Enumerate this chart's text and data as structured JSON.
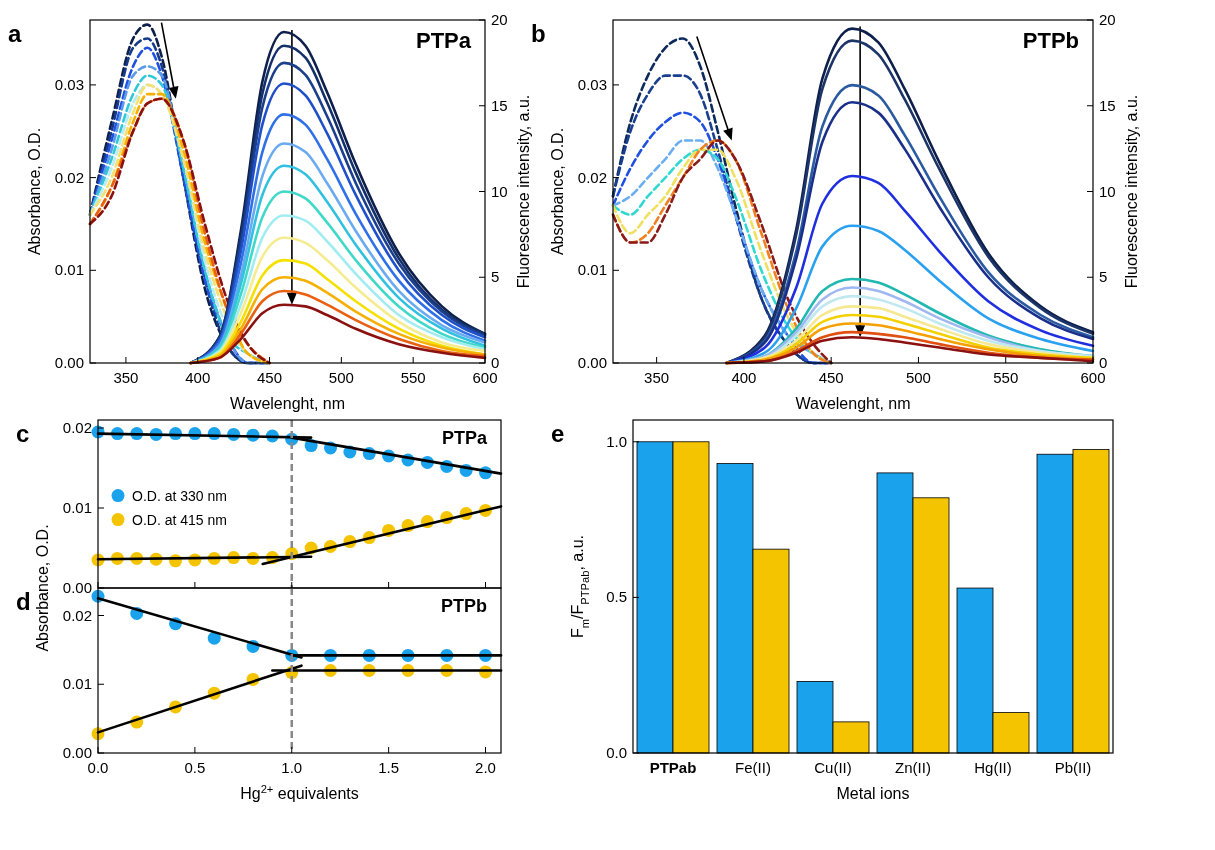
{
  "chart_data": [
    {
      "type": "line",
      "title": "PTPa",
      "annotations": [
        "a"
      ],
      "xlabel": "Wavelenght, nm",
      "ylabel": "Absorbance, O.D.",
      "y2label": "Fluorescence intensity, a.u.",
      "xlim": [
        325,
        600
      ],
      "xticks": [
        350,
        400,
        450,
        500,
        550,
        600
      ],
      "ylim": [
        0,
        0.037
      ],
      "yticks": [
        {
          "value": 0,
          "label": "0.00"
        },
        {
          "value": 0.01,
          "label": "0.01"
        },
        {
          "value": 0.02,
          "label": "0.02"
        },
        {
          "value": 0.03,
          "label": "0.03"
        }
      ],
      "y2lim": [
        0,
        20
      ],
      "y2ticks": [
        0,
        5,
        10,
        15,
        20
      ],
      "legend": false,
      "series": [
        {
          "color": "#0d1f4a",
          "line_style": "dashed",
          "x": [
            325,
            340,
            355,
            365,
            375,
            390,
            405,
            420,
            435,
            450
          ],
          "values": [
            0.016,
            0.026,
            0.035,
            0.0365,
            0.033,
            0.02,
            0.008,
            0.002,
            0,
            0
          ]
        },
        {
          "color": "#163a8a",
          "line_style": "dashed",
          "x": [
            325,
            340,
            355,
            365,
            375,
            390,
            405,
            420,
            435,
            450
          ],
          "values": [
            0.016,
            0.025,
            0.034,
            0.035,
            0.032,
            0.02,
            0.009,
            0.002,
            0,
            0
          ]
        },
        {
          "color": "#2050e0",
          "line_style": "dashed",
          "x": [
            325,
            340,
            355,
            365,
            375,
            390,
            405,
            420,
            435,
            450
          ],
          "values": [
            0.016,
            0.024,
            0.032,
            0.034,
            0.031,
            0.02,
            0.009,
            0.003,
            0,
            0
          ]
        },
        {
          "color": "#5a9ae8",
          "line_style": "dashed",
          "x": [
            325,
            340,
            355,
            365,
            375,
            390,
            405,
            420,
            435,
            450
          ],
          "values": [
            0.016,
            0.023,
            0.031,
            0.032,
            0.031,
            0.021,
            0.01,
            0.003,
            0,
            0
          ]
        },
        {
          "color": "#30c8d8",
          "line_style": "dashed",
          "x": [
            325,
            340,
            355,
            365,
            375,
            390,
            405,
            420,
            435,
            450
          ],
          "values": [
            0.016,
            0.022,
            0.029,
            0.031,
            0.03,
            0.021,
            0.01,
            0.003,
            0.001,
            0
          ]
        },
        {
          "color": "#b8ecf0",
          "line_style": "dashed",
          "x": [
            325,
            340,
            355,
            365,
            375,
            390,
            405,
            420,
            435,
            450
          ],
          "values": [
            0.016,
            0.021,
            0.028,
            0.03,
            0.029,
            0.022,
            0.011,
            0.004,
            0.001,
            0
          ]
        },
        {
          "color": "#f5e070",
          "line_style": "dashed",
          "x": [
            325,
            340,
            355,
            365,
            375,
            390,
            405,
            420,
            435,
            450
          ],
          "values": [
            0.016,
            0.02,
            0.027,
            0.03,
            0.029,
            0.022,
            0.012,
            0.005,
            0.001,
            0
          ]
        },
        {
          "color": "#f5b000",
          "line_style": "dashed",
          "x": [
            325,
            340,
            355,
            365,
            375,
            390,
            405,
            420,
            435,
            450
          ],
          "values": [
            0.015,
            0.019,
            0.026,
            0.029,
            0.029,
            0.023,
            0.013,
            0.006,
            0.001,
            0
          ]
        },
        {
          "color": "#e86010",
          "line_style": "dashed",
          "x": [
            325,
            340,
            355,
            365,
            375,
            390,
            405,
            420,
            435,
            450
          ],
          "values": [
            0.015,
            0.019,
            0.025,
            0.028,
            0.0285,
            0.024,
            0.014,
            0.006,
            0.002,
            0
          ]
        },
        {
          "color": "#8b1010",
          "line_style": "dashed",
          "x": [
            325,
            340,
            355,
            365,
            375,
            390,
            405,
            420,
            435,
            450
          ],
          "values": [
            0.015,
            0.018,
            0.025,
            0.028,
            0.0285,
            0.024,
            0.015,
            0.007,
            0.002,
            0
          ]
        },
        {
          "color": "#0d1f4a",
          "axis": "y2",
          "line_style": "solid",
          "x": [
            395,
            415,
            430,
            445,
            460,
            475,
            490,
            510,
            540,
            570,
            600
          ],
          "values": [
            0,
            1.5,
            7.7,
            16.4,
            19.3,
            18.5,
            15.8,
            11.6,
            6.4,
            3.3,
            1.7
          ]
        },
        {
          "color": "#14306a",
          "axis": "y2",
          "line_style": "solid",
          "x": [
            395,
            415,
            430,
            445,
            460,
            475,
            490,
            510,
            540,
            570,
            600
          ],
          "values": [
            0,
            1.5,
            7.4,
            15.7,
            18.5,
            17.8,
            15.2,
            11.1,
            6.1,
            3.1,
            1.7
          ]
        },
        {
          "color": "#1c3f8c",
          "axis": "y2",
          "line_style": "solid",
          "x": [
            395,
            415,
            430,
            445,
            460,
            475,
            490,
            510,
            540,
            570,
            600
          ],
          "values": [
            0,
            1.4,
            7,
            14.9,
            17.5,
            16.8,
            14.4,
            10.5,
            5.8,
            3,
            1.6
          ]
        },
        {
          "color": "#2050c8",
          "axis": "y2",
          "line_style": "solid",
          "x": [
            395,
            415,
            430,
            445,
            460,
            475,
            490,
            510,
            540,
            570,
            600
          ],
          "values": [
            0,
            1.3,
            6.5,
            13.9,
            16.3,
            15.6,
            13.4,
            9.8,
            5.4,
            2.8,
            1.5
          ]
        },
        {
          "color": "#2f70e8",
          "axis": "y2",
          "line_style": "solid",
          "x": [
            395,
            415,
            430,
            445,
            460,
            475,
            490,
            510,
            540,
            570,
            600
          ],
          "values": [
            0,
            1.2,
            5.8,
            12.3,
            14.5,
            13.9,
            11.9,
            8.7,
            4.8,
            2.5,
            1.3
          ]
        },
        {
          "color": "#6aaaf0",
          "axis": "y2",
          "line_style": "solid",
          "x": [
            395,
            415,
            430,
            445,
            460,
            475,
            490,
            510,
            540,
            570,
            600
          ],
          "values": [
            0,
            1,
            5.1,
            10.9,
            12.8,
            12.3,
            10.5,
            7.7,
            4.2,
            2.2,
            1.2
          ]
        },
        {
          "color": "#30c0e0",
          "axis": "y2",
          "line_style": "solid",
          "x": [
            395,
            415,
            430,
            445,
            460,
            475,
            490,
            510,
            540,
            570,
            600
          ],
          "values": [
            0,
            0.9,
            4.6,
            9.8,
            11.5,
            11,
            9.4,
            6.9,
            3.8,
            2,
            1
          ]
        },
        {
          "color": "#40d8c8",
          "axis": "y2",
          "line_style": "solid",
          "x": [
            395,
            415,
            430,
            445,
            460,
            475,
            490,
            510,
            540,
            570,
            600
          ],
          "values": [
            0,
            0.8,
            4,
            8.5,
            10,
            9.6,
            8.2,
            6,
            3.3,
            1.7,
            0.9
          ]
        },
        {
          "color": "#a0ecf0",
          "axis": "y2",
          "line_style": "solid",
          "x": [
            395,
            415,
            430,
            445,
            460,
            475,
            490,
            510,
            540,
            570,
            600
          ],
          "values": [
            0,
            0.7,
            3.4,
            7.3,
            8.6,
            8.3,
            7.1,
            5.2,
            2.8,
            1.5,
            0.8
          ]
        },
        {
          "color": "#f5ec90",
          "axis": "y2",
          "line_style": "solid",
          "x": [
            395,
            415,
            430,
            445,
            460,
            475,
            490,
            510,
            540,
            570,
            600
          ],
          "values": [
            0,
            0.6,
            2.9,
            6.2,
            7.3,
            7,
            6,
            4.4,
            2.4,
            1.2,
            0.7
          ]
        },
        {
          "color": "#f5e000",
          "axis": "y2",
          "line_style": "solid",
          "x": [
            395,
            415,
            430,
            445,
            460,
            475,
            490,
            510,
            540,
            570,
            600
          ],
          "values": [
            0,
            0.5,
            2.4,
            5.1,
            6,
            5.8,
            4.9,
            3.6,
            2,
            1,
            0.5
          ]
        },
        {
          "color": "#f5b000",
          "axis": "y2",
          "line_style": "solid",
          "x": [
            395,
            415,
            430,
            445,
            460,
            475,
            490,
            510,
            540,
            570,
            600
          ],
          "values": [
            0,
            0.4,
            2,
            4.3,
            5,
            4.8,
            4.1,
            3,
            1.7,
            0.9,
            0.5
          ]
        },
        {
          "color": "#e86010",
          "axis": "y2",
          "line_style": "solid",
          "x": [
            395,
            415,
            430,
            445,
            460,
            475,
            490,
            510,
            540,
            570,
            600
          ],
          "values": [
            0,
            0.3,
            1.7,
            3.6,
            4.2,
            4,
            3.4,
            2.5,
            1.4,
            0.7,
            0.4
          ]
        },
        {
          "color": "#8b1010",
          "axis": "y2",
          "line_style": "solid",
          "x": [
            395,
            415,
            430,
            445,
            460,
            475,
            490,
            510,
            540,
            570,
            600
          ],
          "values": [
            0,
            0.3,
            1.4,
            2.9,
            3.4,
            3.3,
            2.8,
            2,
            1.1,
            0.6,
            0.3
          ]
        }
      ]
    },
    {
      "type": "line",
      "title": "PTPb",
      "annotations": [
        "b"
      ],
      "xlabel": "Wavelenght, nm",
      "ylabel": "Absorbance, O.D.",
      "y2label": "Fluorescence intensity, a.u.",
      "xlim": [
        325,
        600
      ],
      "xticks": [
        350,
        400,
        450,
        500,
        550,
        600
      ],
      "ylim": [
        0,
        0.037
      ],
      "yticks": [
        {
          "value": 0,
          "label": "0.00"
        },
        {
          "value": 0.01,
          "label": "0.01"
        },
        {
          "value": 0.02,
          "label": "0.02"
        },
        {
          "value": 0.03,
          "label": "0.03"
        }
      ],
      "y2lim": [
        0,
        20
      ],
      "y2ticks": [
        0,
        5,
        10,
        15,
        20
      ],
      "legend": false,
      "series": [
        {
          "color": "#0d2a5c",
          "line_style": "dashed",
          "x": [
            325,
            335,
            345,
            355,
            365,
            375,
            385,
            395,
            410,
            425,
            440,
            450
          ],
          "values": [
            0.018,
            0.026,
            0.031,
            0.034,
            0.035,
            0.032,
            0.025,
            0.017,
            0.007,
            0.002,
            0,
            0
          ]
        },
        {
          "color": "#1a3f8f",
          "line_style": "dashed",
          "x": [
            325,
            335,
            345,
            355,
            365,
            375,
            385,
            395,
            410,
            425,
            440,
            450
          ],
          "values": [
            0.018,
            0.025,
            0.029,
            0.031,
            0.031,
            0.029,
            0.023,
            0.016,
            0.007,
            0.002,
            0,
            0
          ]
        },
        {
          "color": "#2050e0",
          "line_style": "dashed",
          "x": [
            325,
            335,
            345,
            355,
            365,
            375,
            385,
            395,
            410,
            425,
            440,
            450
          ],
          "values": [
            0.017,
            0.021,
            0.024,
            0.026,
            0.027,
            0.026,
            0.022,
            0.016,
            0.008,
            0.003,
            0,
            0
          ]
        },
        {
          "color": "#6aaef0",
          "line_style": "dashed",
          "x": [
            325,
            335,
            345,
            355,
            365,
            375,
            385,
            395,
            410,
            425,
            440,
            450
          ],
          "values": [
            0.017,
            0.018,
            0.02,
            0.022,
            0.024,
            0.024,
            0.021,
            0.016,
            0.008,
            0.003,
            0.001,
            0
          ]
        },
        {
          "color": "#30d8d0",
          "line_style": "dashed",
          "x": [
            325,
            335,
            345,
            355,
            365,
            375,
            385,
            395,
            410,
            425,
            440,
            450
          ],
          "values": [
            0.017,
            0.016,
            0.018,
            0.02,
            0.022,
            0.023,
            0.022,
            0.018,
            0.01,
            0.004,
            0.001,
            0
          ]
        },
        {
          "color": "#f0e060",
          "line_style": "dashed",
          "x": [
            325,
            335,
            345,
            355,
            365,
            375,
            385,
            395,
            410,
            425,
            440,
            450
          ],
          "values": [
            0.017,
            0.014,
            0.016,
            0.018,
            0.021,
            0.023,
            0.023,
            0.02,
            0.012,
            0.005,
            0.001,
            0
          ]
        },
        {
          "color": "#f08020",
          "line_style": "dashed",
          "x": [
            325,
            335,
            345,
            355,
            365,
            375,
            385,
            395,
            410,
            425,
            440,
            450
          ],
          "values": [
            0.016,
            0.013,
            0.014,
            0.017,
            0.02,
            0.023,
            0.024,
            0.022,
            0.014,
            0.006,
            0.001,
            0
          ]
        },
        {
          "color": "#8b1a1a",
          "line_style": "dashed",
          "x": [
            325,
            335,
            345,
            355,
            365,
            375,
            385,
            395,
            410,
            425,
            440,
            450
          ],
          "values": [
            0.016,
            0.013,
            0.013,
            0.016,
            0.02,
            0.022,
            0.024,
            0.022,
            0.015,
            0.007,
            0.002,
            0
          ]
        },
        {
          "color": "#0d1f4a",
          "axis": "y2",
          "line_style": "solid",
          "x": [
            390,
            412,
            430,
            445,
            462,
            477,
            492,
            512,
            540,
            570,
            600
          ],
          "values": [
            0,
            1.6,
            7.8,
            16.6,
            19.5,
            18.7,
            16,
            11.7,
            6.4,
            3.3,
            1.8
          ]
        },
        {
          "color": "#1c3468",
          "axis": "y2",
          "line_style": "solid",
          "x": [
            390,
            412,
            430,
            445,
            462,
            477,
            492,
            512,
            540,
            570,
            600
          ],
          "values": [
            0,
            1.5,
            7.5,
            16,
            18.8,
            18,
            15.4,
            11.3,
            6.2,
            3.2,
            1.7
          ]
        },
        {
          "color": "#2a5aa0",
          "axis": "y2",
          "line_style": "solid",
          "x": [
            390,
            412,
            430,
            445,
            462,
            477,
            492,
            512,
            540,
            570,
            600
          ],
          "values": [
            0,
            1.3,
            6.5,
            13.8,
            16.2,
            15.6,
            13.3,
            9.7,
            5.3,
            2.8,
            1.5
          ]
        },
        {
          "color": "#1a2f8a",
          "axis": "y2",
          "line_style": "solid",
          "x": [
            390,
            412,
            430,
            445,
            462,
            477,
            492,
            512,
            540,
            570,
            600
          ],
          "values": [
            0,
            1.2,
            6.1,
            12.9,
            15.2,
            14.6,
            12.5,
            9.1,
            5,
            2.6,
            1.4
          ]
        },
        {
          "color": "#1f2fe0",
          "axis": "y2",
          "line_style": "solid",
          "x": [
            390,
            412,
            430,
            445,
            462,
            477,
            492,
            512,
            540,
            570,
            600
          ],
          "values": [
            0,
            0.9,
            4.4,
            9.3,
            10.9,
            10.5,
            8.9,
            6.5,
            3.6,
            1.9,
            1
          ]
        },
        {
          "color": "#2aa0f0",
          "axis": "y2",
          "line_style": "solid",
          "x": [
            390,
            412,
            430,
            445,
            462,
            477,
            492,
            512,
            540,
            570,
            600
          ],
          "values": [
            0,
            0.6,
            3.2,
            6.8,
            8,
            7.7,
            6.6,
            4.8,
            2.6,
            1.4,
            0.7
          ]
        },
        {
          "color": "#20b8b0",
          "axis": "y2",
          "line_style": "solid",
          "x": [
            390,
            412,
            430,
            445,
            462,
            477,
            492,
            512,
            540,
            570,
            600
          ],
          "values": [
            0,
            0.4,
            2,
            4.2,
            4.9,
            4.7,
            4,
            2.9,
            1.6,
            0.8,
            0.4
          ]
        },
        {
          "color": "#a0b8f0",
          "axis": "y2",
          "line_style": "solid",
          "x": [
            390,
            412,
            430,
            445,
            462,
            477,
            492,
            512,
            540,
            570,
            600
          ],
          "values": [
            0,
            0.4,
            1.8,
            3.7,
            4.4,
            4.2,
            3.6,
            2.6,
            1.5,
            0.7,
            0.4
          ]
        },
        {
          "color": "#c0e8f0",
          "axis": "y2",
          "line_style": "solid",
          "x": [
            390,
            412,
            430,
            445,
            462,
            477,
            492,
            512,
            540,
            570,
            600
          ],
          "values": [
            0,
            0.3,
            1.6,
            3.3,
            3.9,
            3.7,
            3.2,
            2.3,
            1.3,
            0.7,
            0.4
          ]
        },
        {
          "color": "#f5e890",
          "axis": "y2",
          "line_style": "solid",
          "x": [
            390,
            412,
            430,
            445,
            462,
            477,
            492,
            512,
            540,
            570,
            600
          ],
          "values": [
            0,
            0.3,
            1.3,
            2.8,
            3.3,
            3.2,
            2.7,
            2,
            1.1,
            0.6,
            0.3
          ]
        },
        {
          "color": "#f5d000",
          "axis": "y2",
          "line_style": "solid",
          "x": [
            390,
            412,
            430,
            445,
            462,
            477,
            492,
            512,
            540,
            570,
            600
          ],
          "values": [
            0,
            0.2,
            1.1,
            2.4,
            2.8,
            2.7,
            2.3,
            1.7,
            0.9,
            0.5,
            0.3
          ]
        },
        {
          "color": "#f5a000",
          "axis": "y2",
          "line_style": "solid",
          "x": [
            390,
            412,
            430,
            445,
            462,
            477,
            492,
            512,
            540,
            570,
            600
          ],
          "values": [
            0,
            0.2,
            0.9,
            2,
            2.3,
            2.2,
            1.9,
            1.4,
            0.8,
            0.4,
            0.2
          ]
        },
        {
          "color": "#e05010",
          "axis": "y2",
          "line_style": "solid",
          "x": [
            390,
            412,
            430,
            445,
            462,
            477,
            492,
            512,
            540,
            570,
            600
          ],
          "values": [
            0,
            0.1,
            0.7,
            1.5,
            1.8,
            1.7,
            1.5,
            1.1,
            0.6,
            0.3,
            0.2
          ]
        },
        {
          "color": "#8b1010",
          "axis": "y2",
          "line_style": "solid",
          "x": [
            390,
            412,
            430,
            445,
            462,
            477,
            492,
            512,
            540,
            570,
            600
          ],
          "values": [
            0,
            0.1,
            0.6,
            1.3,
            1.5,
            1.4,
            1.2,
            0.9,
            0.5,
            0.3,
            0.1
          ]
        }
      ]
    },
    {
      "type": "scatter",
      "title": "PTPa",
      "annotations": [
        "c"
      ],
      "ylabel": "Absorbance, O.D.",
      "xlim": [
        0,
        2.08
      ],
      "xticks": [
        {
          "value": 0,
          "label": null
        },
        {
          "value": 0.5,
          "label": null
        },
        {
          "value": 1,
          "label": null
        },
        {
          "value": 1.5,
          "label": null
        },
        {
          "value": 2,
          "label": null
        }
      ],
      "ylim": [
        0,
        0.021
      ],
      "yticks": [
        {
          "value": 0,
          "label": "0.00"
        },
        {
          "value": 0.01,
          "label": "0.01"
        },
        {
          "value": 0.02,
          "label": "0.02"
        }
      ],
      "tick_labels": "y",
      "legend": "left",
      "marker": "circle",
      "ref_lines": [
        {
          "axis": "x",
          "value": 1,
          "color": "#888888",
          "line_style": "dashed"
        }
      ],
      "series": [
        {
          "name": "O.D. at 330 nm",
          "color": "#1aa3ec",
          "x": [
            0,
            0.1,
            0.2,
            0.3,
            0.4,
            0.5,
            0.6,
            0.7,
            0.8,
            0.9,
            1,
            1.1,
            1.2,
            1.3,
            1.4,
            1.5,
            1.6,
            1.7,
            1.8,
            1.9,
            2
          ],
          "values": [
            0.0195,
            0.0193,
            0.0193,
            0.0192,
            0.0193,
            0.0193,
            0.0193,
            0.0192,
            0.0191,
            0.019,
            0.0186,
            0.0178,
            0.0175,
            0.017,
            0.0168,
            0.0165,
            0.016,
            0.0157,
            0.0152,
            0.0147,
            0.0144
          ]
        },
        {
          "name": "O.D. at 415 nm",
          "color": "#f5c400",
          "x": [
            0,
            0.1,
            0.2,
            0.3,
            0.4,
            0.5,
            0.6,
            0.7,
            0.8,
            0.9,
            1,
            1.1,
            1.2,
            1.3,
            1.4,
            1.5,
            1.6,
            1.7,
            1.8,
            1.9,
            2
          ],
          "values": [
            0.0035,
            0.0037,
            0.0037,
            0.0036,
            0.0034,
            0.0035,
            0.0037,
            0.0038,
            0.0037,
            0.0038,
            0.0043,
            0.005,
            0.0052,
            0.0058,
            0.0063,
            0.0072,
            0.0078,
            0.0083,
            0.0088,
            0.0093,
            0.0097
          ]
        },
        {
          "type": "line",
          "marker": "none",
          "color": "#000000",
          "x": [
            0,
            1.1
          ],
          "values": [
            0.0193,
            0.0188
          ]
        },
        {
          "type": "line",
          "marker": "none",
          "color": "#000000",
          "x": [
            1,
            2.08
          ],
          "values": [
            0.0188,
            0.0143
          ]
        },
        {
          "type": "line",
          "marker": "none",
          "color": "#000000",
          "x": [
            0,
            1.1
          ],
          "values": [
            0.0036,
            0.0039
          ]
        },
        {
          "type": "line",
          "marker": "none",
          "color": "#000000",
          "x": [
            0.85,
            2.08
          ],
          "values": [
            0.003,
            0.0102
          ]
        }
      ]
    },
    {
      "type": "scatter",
      "title": "PTPb",
      "annotations": [
        "d"
      ],
      "xlabel": "Hg$^{2+}$ equivalents",
      "xlim": [
        0,
        2.08
      ],
      "xticks": [
        {
          "value": 0,
          "label": "0.0"
        },
        {
          "value": 0.5,
          "label": "0.5"
        },
        {
          "value": 1,
          "label": "1.0"
        },
        {
          "value": 1.5,
          "label": "1.5"
        },
        {
          "value": 2,
          "label": "2.0"
        }
      ],
      "ylim": [
        0,
        0.024
      ],
      "yticks": [
        {
          "value": 0,
          "label": "0.00"
        },
        {
          "value": 0.01,
          "label": "0.01"
        },
        {
          "value": 0.02,
          "label": "0.02"
        }
      ],
      "marker": "circle",
      "ref_lines": [
        {
          "axis": "x",
          "value": 1,
          "color": "#888888",
          "line_style": "dashed"
        }
      ],
      "series": [
        {
          "color": "#1aa3ec",
          "x": [
            0,
            0.2,
            0.4,
            0.6,
            0.8,
            1,
            1.2,
            1.4,
            1.6,
            1.8,
            2
          ],
          "values": [
            0.0228,
            0.0203,
            0.0188,
            0.0167,
            0.0155,
            0.0142,
            0.0142,
            0.0142,
            0.0142,
            0.0142,
            0.0142
          ]
        },
        {
          "color": "#f5c400",
          "x": [
            0,
            0.2,
            0.4,
            0.6,
            0.8,
            1,
            1.2,
            1.4,
            1.6,
            1.8,
            2
          ],
          "values": [
            0.0028,
            0.0045,
            0.0067,
            0.0087,
            0.0107,
            0.0117,
            0.012,
            0.012,
            0.012,
            0.012,
            0.0118
          ]
        },
        {
          "type": "line",
          "marker": "none",
          "color": "#000000",
          "x": [
            0,
            1.05
          ],
          "values": [
            0.0225,
            0.0139
          ]
        },
        {
          "type": "line",
          "marker": "none",
          "color": "#000000",
          "x": [
            1,
            2.08
          ],
          "values": [
            0.0142,
            0.0142
          ]
        },
        {
          "type": "line",
          "marker": "none",
          "color": "#000000",
          "x": [
            0,
            1.05
          ],
          "values": [
            0.003,
            0.0127
          ]
        },
        {
          "type": "line",
          "marker": "none",
          "color": "#000000",
          "x": [
            0.9,
            2.08
          ],
          "values": [
            0.012,
            0.012
          ]
        }
      ]
    },
    {
      "type": "bar",
      "annotations": [
        "e"
      ],
      "xlabel": "Metal ions",
      "ylabel": "F$_{m}$/F$_{PTPab}$, a.u.",
      "categories": [
        "PTPab",
        "Fe(II)",
        "Cu(II)",
        "Zn(II)",
        "Hg(II)",
        "Pb(II)"
      ],
      "ylim": [
        0,
        1.07
      ],
      "yticks": [
        {
          "value": 0,
          "label": "0.0"
        },
        {
          "value": 0.5,
          "label": "0.5"
        },
        {
          "value": 1,
          "label": "1.0"
        }
      ],
      "legend": false,
      "series": [
        {
          "color": "#1aa3ec",
          "values": [
            1,
            0.93,
            0.23,
            0.9,
            0.53,
            0.96
          ]
        },
        {
          "color": "#f5c400",
          "values": [
            1,
            0.655,
            0.1,
            0.82,
            0.13,
            0.975
          ]
        }
      ]
    }
  ]
}
